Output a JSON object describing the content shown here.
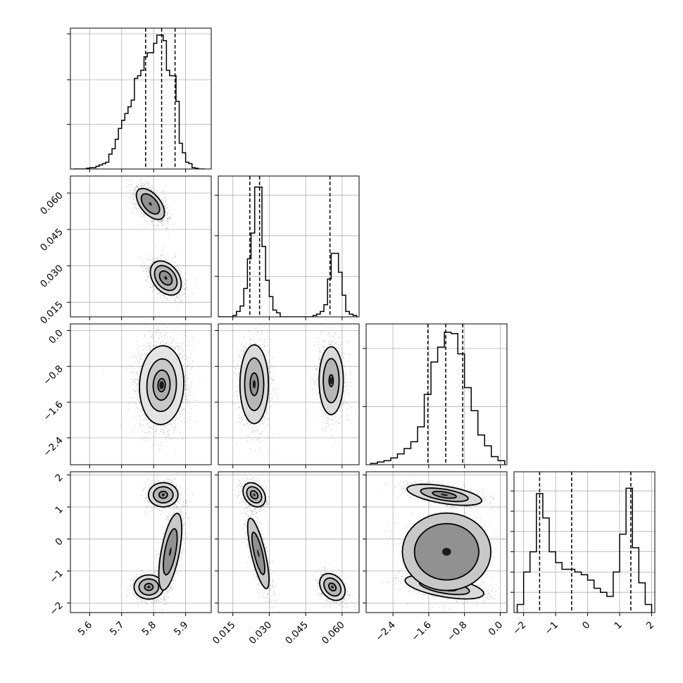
{
  "chart_data": {
    "type": "corner",
    "grid": true,
    "parameters": [
      {
        "index": 0,
        "range": [
          5.54,
          5.98
        ],
        "ticks": [
          5.6,
          5.7,
          5.8,
          5.9
        ],
        "tick_labels": [
          "5.6",
          "5.7",
          "5.8",
          "5.9"
        ],
        "quantiles": [
          5.775,
          5.825,
          5.867
        ]
      },
      {
        "index": 1,
        "range": [
          0.009,
          0.067
        ],
        "ticks": [
          0.015,
          0.03,
          0.045,
          0.06
        ],
        "tick_labels": [
          "0.015",
          "0.030",
          "0.045",
          "0.060"
        ],
        "quantiles": [
          0.022,
          0.026,
          0.055
        ]
      },
      {
        "index": 2,
        "range": [
          -3.0,
          0.15
        ],
        "ticks": [
          -2.4,
          -1.6,
          -0.8,
          0.0
        ],
        "tick_labels": [
          "−2.4",
          "−1.6",
          "−0.8",
          "0.0"
        ],
        "quantiles": [
          -1.62,
          -1.22,
          -0.84
        ]
      },
      {
        "index": 3,
        "range": [
          -2.3,
          2.1
        ],
        "ticks": [
          -2,
          -1,
          0,
          1,
          2
        ],
        "tick_labels": [
          "−2",
          "−1",
          "0",
          "1",
          "2"
        ],
        "quantiles": [
          -1.5,
          -0.5,
          1.35
        ]
      }
    ],
    "histograms": [
      {
        "param": 0,
        "ymax": 1.0,
        "ytick_values": [
          0.33,
          0.66,
          1.0
        ],
        "edges": [
          5.55,
          5.56,
          5.57,
          5.58,
          5.59,
          5.6,
          5.61,
          5.62,
          5.63,
          5.64,
          5.65,
          5.66,
          5.67,
          5.68,
          5.69,
          5.7,
          5.71,
          5.72,
          5.73,
          5.74,
          5.75,
          5.76,
          5.77,
          5.78,
          5.79,
          5.8,
          5.81,
          5.82,
          5.83,
          5.84,
          5.85,
          5.86,
          5.87,
          5.88,
          5.89,
          5.9,
          5.91,
          5.92,
          5.93,
          5.94,
          5.95,
          5.96
        ],
        "counts": [
          0,
          0,
          0,
          0,
          0.005,
          0.01,
          0.01,
          0.02,
          0.03,
          0.04,
          0.05,
          0.11,
          0.15,
          0.22,
          0.3,
          0.36,
          0.41,
          0.46,
          0.51,
          0.67,
          0.69,
          0.73,
          0.83,
          0.86,
          0.86,
          0.93,
          0.99,
          0.99,
          0.95,
          0.73,
          0.69,
          0.69,
          0.5,
          0.19,
          0.12,
          0.05,
          0.04,
          0.01,
          0.005,
          0,
          0
        ]
      },
      {
        "param": 1,
        "ymax": 1.0,
        "ytick_values": [
          0.3,
          0.6,
          0.9
        ],
        "edges": [
          0.009,
          0.0105,
          0.012,
          0.0135,
          0.015,
          0.0165,
          0.018,
          0.0195,
          0.021,
          0.0225,
          0.024,
          0.0255,
          0.027,
          0.0285,
          0.03,
          0.0315,
          0.033,
          0.0345,
          0.036,
          0.0375,
          0.039,
          0.0405,
          0.042,
          0.0435,
          0.045,
          0.0465,
          0.048,
          0.0495,
          0.051,
          0.0525,
          0.054,
          0.0555,
          0.057,
          0.0585,
          0.06,
          0.0615,
          0.063,
          0.0645,
          0.066
        ],
        "counts": [
          0,
          0,
          0,
          0,
          0.01,
          0.04,
          0.08,
          0.21,
          0.43,
          0.62,
          0.96,
          0.96,
          0.52,
          0.27,
          0.15,
          0.05,
          0.03,
          0,
          0,
          0,
          0,
          0,
          0,
          0,
          0,
          0,
          0.01,
          0.02,
          0.04,
          0.09,
          0.28,
          0.47,
          0.47,
          0.33,
          0.16,
          0.04,
          0.02,
          0.01
        ]
      },
      {
        "param": 2,
        "ymax": 1.0,
        "ytick_values": [
          0.43,
          0.86
        ],
        "edges": [
          -2.9,
          -2.75,
          -2.6,
          -2.45,
          -2.3,
          -2.15,
          -2.0,
          -1.85,
          -1.7,
          -1.55,
          -1.4,
          -1.25,
          -1.1,
          -0.95,
          -0.8,
          -0.65,
          -0.5,
          -0.35,
          -0.2,
          -0.05,
          0.1
        ],
        "counts": [
          0.01,
          0.02,
          0.03,
          0.05,
          0.08,
          0.12,
          0.17,
          0.28,
          0.52,
          0.76,
          0.87,
          0.98,
          0.97,
          0.82,
          0.57,
          0.4,
          0.22,
          0.14,
          0.06,
          0.03
        ]
      },
      {
        "param": 3,
        "ymax": 1.0,
        "ytick_values": [
          0.15,
          0.3,
          0.45,
          0.6,
          0.75,
          0.9
        ],
        "edges": [
          -2.2,
          -2.0,
          -1.8,
          -1.6,
          -1.4,
          -1.2,
          -1.0,
          -0.8,
          -0.6,
          -0.4,
          -0.2,
          0.0,
          0.2,
          0.4,
          0.6,
          0.8,
          1.0,
          1.2,
          1.4,
          1.6,
          1.8,
          2.0
        ],
        "counts": [
          0.06,
          0.3,
          0.45,
          0.88,
          0.7,
          0.45,
          0.37,
          0.32,
          0.32,
          0.3,
          0.28,
          0.24,
          0.18,
          0.15,
          0.12,
          0.3,
          0.58,
          0.92,
          0.48,
          0.22,
          0.06
        ]
      }
    ],
    "pairs": [
      {
        "x": 0,
        "y": 1,
        "modes": [
          {
            "cx": 5.79,
            "cy": 0.0555,
            "sx": 0.022,
            "sy": 0.0032,
            "rho": -0.55,
            "w": 0.45,
            "levels": [
              1.3,
              2.0
            ]
          },
          {
            "cx": 5.838,
            "cy": 0.025,
            "sx": 0.022,
            "sy": 0.0032,
            "rho": -0.35,
            "w": 0.55,
            "levels": [
              0.9,
              1.6,
              2.2
            ]
          }
        ]
      },
      {
        "x": 0,
        "y": 2,
        "modes": [
          {
            "cx": 5.825,
            "cy": -1.22,
            "sx": 0.033,
            "sy": 0.42,
            "rho": 0.05,
            "w": 1.0,
            "levels": [
              0.35,
              0.8,
              1.4,
              2.1
            ]
          }
        ]
      },
      {
        "x": 1,
        "y": 2,
        "modes": [
          {
            "cx": 0.0238,
            "cy": -1.2,
            "sx": 0.0028,
            "sy": 0.42,
            "rho": 0.0,
            "w": 0.55,
            "levels": [
              0.6,
              1.4,
              2.1
            ]
          },
          {
            "cx": 0.0555,
            "cy": -1.12,
            "sx": 0.0025,
            "sy": 0.38,
            "rho": 0.0,
            "w": 0.45,
            "levels": [
              0.35,
              1.3,
              2.0
            ]
          }
        ]
      },
      {
        "x": 0,
        "y": 3,
        "modes": [
          {
            "cx": 5.83,
            "cy": 1.38,
            "sx": 0.022,
            "sy": 0.18,
            "rho": 0.0,
            "w": 0.33,
            "levels": [
              0.6,
              1.4,
              2.1
            ]
          },
          {
            "cx": 5.785,
            "cy": -1.5,
            "sx": 0.022,
            "sy": 0.18,
            "rho": 0.0,
            "w": 0.33,
            "levels": [
              0.6,
              1.4,
              2.1
            ]
          },
          {
            "cx": 5.852,
            "cy": -0.4,
            "sx": 0.018,
            "sy": 0.6,
            "rho": 0.6,
            "w": 0.34,
            "levels": [
              1.2,
              2.0
            ]
          }
        ]
      },
      {
        "x": 1,
        "y": 3,
        "modes": [
          {
            "cx": 0.0238,
            "cy": 1.38,
            "sx": 0.0022,
            "sy": 0.18,
            "rho": -0.3,
            "w": 0.33,
            "levels": [
              0.7,
              1.4,
              2.1
            ]
          },
          {
            "cx": 0.056,
            "cy": -1.5,
            "sx": 0.0025,
            "sy": 0.2,
            "rho": -0.3,
            "w": 0.33,
            "levels": [
              0.6,
              1.4,
              2.1
            ]
          },
          {
            "cx": 0.0255,
            "cy": -0.45,
            "sx": 0.0022,
            "sy": 0.55,
            "rho": -0.75,
            "w": 0.34,
            "levels": [
              1.2,
              2.0
            ]
          }
        ]
      },
      {
        "x": 2,
        "y": 3,
        "modes": [
          {
            "cx": -1.25,
            "cy": 1.38,
            "sx": 0.38,
            "sy": 0.15,
            "rho": -0.55,
            "w": 0.4,
            "levels": [
              0.7,
              1.4,
              2.2
            ]
          },
          {
            "cx": -1.25,
            "cy": -1.5,
            "sx": 0.4,
            "sy": 0.17,
            "rho": -0.55,
            "w": 0.4,
            "levels": [
              0.7,
              1.4,
              2.2
            ]
          },
          {
            "cx": -1.2,
            "cy": -0.4,
            "sx": 0.45,
            "sy": 0.55,
            "rho": 0.0,
            "w": 0.2,
            "levels": [
              1.6,
              2.2
            ]
          }
        ]
      }
    ]
  }
}
